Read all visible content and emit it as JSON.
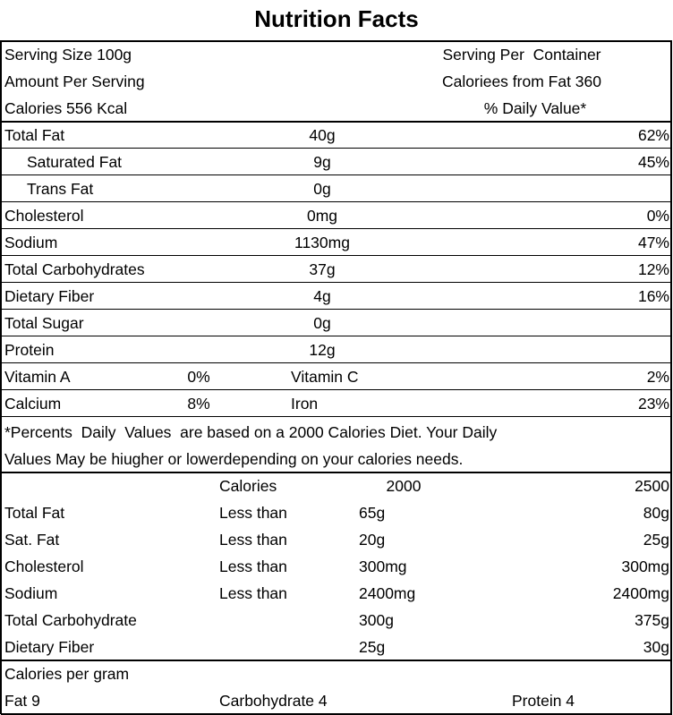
{
  "title": "Nutrition Facts",
  "header_rows": [
    [
      "Serving Size 100g",
      "Serving Per  Container"
    ],
    [
      "Amount Per Serving",
      "Caloriees from Fat 360"
    ],
    [
      "Calories 556 Kcal",
      "% Daily Value*"
    ]
  ],
  "nutrients": [
    {
      "name": "Total Fat",
      "amount": "40g",
      "daily": "62%"
    },
    {
      "name": "Saturated Fat",
      "amount": "9g",
      "daily": "45%"
    },
    {
      "name": "Trans Fat",
      "amount": "0g"
    },
    {
      "name": "Cholesterol",
      "amount": "0mg",
      "daily": "0%"
    },
    {
      "name": "Sodium",
      "amount": "1130mg",
      "daily": "47%"
    },
    {
      "name": "Total Carbohydrates",
      "amount": "37g",
      "daily": "12%"
    },
    {
      "name": "Dietary Fiber",
      "amount": "4g",
      "daily": "16%"
    },
    {
      "name": "Total Sugar",
      "amount": "0g"
    },
    {
      "name": "Protein",
      "amount": "12g"
    }
  ],
  "vitamins": [
    [
      "Vitamin A",
      "0%",
      "Vitamin C",
      "2%"
    ],
    [
      "Calcium",
      "8%",
      "Iron",
      "23%"
    ]
  ],
  "footnote": [
    "*Percents  Daily  Values  are based on a 2000 Calories Diet. Your Daily",
    "Values May be hiugher or lowerdepending on your calories needs."
  ],
  "daily_table": {
    "header": [
      "Calories",
      "2000",
      "2500"
    ],
    "rows": [
      {
        "name": "Total Fat",
        "qualifier": "Less than",
        "v2000": "65g",
        "v2500": "80g"
      },
      {
        "name": "Sat. Fat",
        "qualifier": "Less than",
        "v2000": "20g",
        "v2500": "25g"
      },
      {
        "name": "Cholesterol",
        "qualifier": "Less than",
        "v2000": "300mg",
        "v2500": "300mg"
      },
      {
        "name": "Sodium",
        "qualifier": "Less than",
        "v2000": "2400mg",
        "v2500": "2400mg"
      },
      {
        "name": "Total Carbohydrate",
        "v2000": "300g",
        "v2500": "375g"
      },
      {
        "name": "Dietary Fiber",
        "v2000": "25g",
        "v2500": "30g"
      }
    ]
  },
  "calories_per_gram": {
    "title": "Calories per gram",
    "items": [
      "Fat 9",
      "Carbohydrate 4",
      "Protein 4"
    ]
  }
}
